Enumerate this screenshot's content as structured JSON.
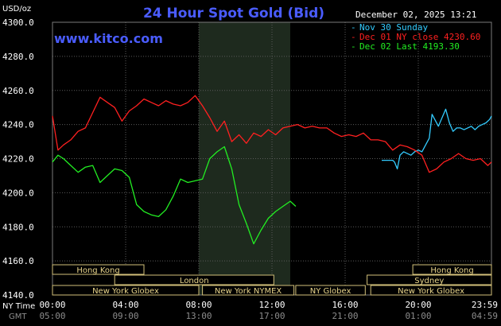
{
  "chart_data": {
    "type": "line",
    "title": "24 Hour Spot Gold (Bid)",
    "unit_label": "USD/oz",
    "watermark": "www.kitco.com",
    "timestamp": "December 02, 2025 13:21",
    "y_ticks": [
      "4300.0",
      "4280.0",
      "4260.0",
      "4240.0",
      "4220.0",
      "4200.0",
      "4180.0",
      "4160.0",
      "4140.0"
    ],
    "ylim": [
      4140,
      4300
    ],
    "xlim": [
      0,
      24
    ],
    "x_ticks_ny": [
      "00:00",
      "04:00",
      "08:00",
      "12:00",
      "16:00",
      "20:00",
      "23:59"
    ],
    "x_ticks_gmt": [
      "05:00",
      "09:00",
      "13:00",
      "17:00",
      "21:00",
      "01:00",
      "04:59"
    ],
    "x_tick_hours": [
      0,
      4,
      8,
      12,
      16,
      20,
      24
    ],
    "x_axis_row_labels": [
      "NY Time",
      "GMT"
    ],
    "shaded_region_hours": [
      8.0,
      13.0
    ],
    "grid": true,
    "legend_placement": "top-right",
    "series": [
      {
        "name": "Nov 30 Sunday",
        "color": "#33ccff",
        "x": [
          18.0,
          18.3,
          18.6,
          18.7,
          18.85,
          19.0,
          19.2,
          19.4,
          19.6,
          19.8,
          20.0,
          20.2,
          20.4,
          20.6,
          20.75,
          20.9,
          21.1,
          21.3,
          21.5,
          21.7,
          21.9,
          22.1,
          22.3,
          22.5,
          22.7,
          22.9,
          23.1,
          23.3,
          23.5,
          23.7,
          23.9,
          24.0
        ],
        "values": [
          4219,
          4219,
          4219,
          4218,
          4214,
          4222,
          4224,
          4223,
          4222,
          4224,
          4225,
          4224,
          4228,
          4232,
          4246,
          4243,
          4239,
          4244,
          4249,
          4241,
          4236,
          4238,
          4238,
          4237,
          4238,
          4239,
          4237,
          4239,
          4240,
          4241,
          4243,
          4245
        ]
      },
      {
        "name": "Dec 01 NY close 4230.60",
        "color": "#ff2020",
        "x": [
          0.0,
          0.3,
          0.6,
          1.0,
          1.4,
          1.8,
          2.2,
          2.6,
          3.0,
          3.4,
          3.8,
          4.2,
          4.6,
          5.0,
          5.4,
          5.8,
          6.2,
          6.6,
          7.0,
          7.4,
          7.8,
          8.2,
          8.6,
          9.0,
          9.4,
          9.8,
          10.2,
          10.6,
          11.0,
          11.4,
          11.8,
          12.2,
          12.6,
          13.0,
          13.4,
          13.8,
          14.2,
          14.6,
          15.0,
          15.4,
          15.8,
          16.2,
          16.6,
          17.0,
          17.4,
          17.8,
          18.2,
          18.6,
          19.0,
          19.4,
          19.8,
          20.2,
          20.6,
          21.0,
          21.4,
          21.8,
          22.2,
          22.6,
          23.0,
          23.4,
          23.8,
          24.0
        ],
        "values": [
          4245,
          4225,
          4228,
          4231,
          4236,
          4238,
          4247,
          4256,
          4253,
          4250,
          4242,
          4248,
          4251,
          4255,
          4253,
          4251,
          4254,
          4252,
          4251,
          4253,
          4257,
          4251,
          4244,
          4236,
          4242,
          4230,
          4234,
          4229,
          4235,
          4233,
          4237,
          4234,
          4238,
          4239,
          4240,
          4238,
          4239,
          4238,
          4238,
          4235,
          4233,
          4234,
          4233,
          4235,
          4231,
          4231,
          4230,
          4225,
          4228,
          4227,
          4225,
          4222,
          4212,
          4214,
          4218,
          4220,
          4223,
          4220,
          4219,
          4220,
          4216,
          4218
        ]
      },
      {
        "name": "Dec 02 Last 4193.30",
        "color": "#22ee22",
        "x": [
          0.0,
          0.3,
          0.6,
          1.0,
          1.4,
          1.8,
          2.2,
          2.6,
          3.0,
          3.4,
          3.8,
          4.2,
          4.6,
          5.0,
          5.4,
          5.8,
          6.2,
          6.6,
          7.0,
          7.4,
          7.8,
          8.2,
          8.6,
          9.0,
          9.4,
          9.8,
          10.2,
          10.6,
          11.0,
          11.4,
          11.8,
          12.2,
          12.6,
          13.0,
          13.3
        ],
        "values": [
          4218,
          4222,
          4220,
          4216,
          4212,
          4215,
          4216,
          4206,
          4210,
          4214,
          4213,
          4209,
          4193,
          4189,
          4187,
          4186,
          4190,
          4198,
          4208,
          4206,
          4207,
          4208,
          4220,
          4224,
          4227,
          4214,
          4193,
          4182,
          4170,
          4178,
          4185,
          4189,
          4192,
          4195,
          4192
        ]
      }
    ],
    "sessions": [
      {
        "name": "Hong Kong",
        "row": 0,
        "start": 0,
        "end": 5
      },
      {
        "name": "Hong Kong",
        "row": 0,
        "start": 19.7,
        "end": 24
      },
      {
        "name": "London",
        "row": 1,
        "start": 3.4,
        "end": 12.1
      },
      {
        "name": "Sydney",
        "row": 1,
        "start": 17.2,
        "end": 24
      },
      {
        "name": "New York Globex",
        "row": 2,
        "start": 0,
        "end": 8
      },
      {
        "name": "New York NYMEX",
        "row": 2,
        "start": 8.2,
        "end": 13.2
      },
      {
        "name": "NY Globex",
        "row": 2,
        "start": 13.3,
        "end": 17.1
      },
      {
        "name": "New York Globex",
        "row": 2,
        "start": 17.4,
        "end": 24
      }
    ]
  }
}
